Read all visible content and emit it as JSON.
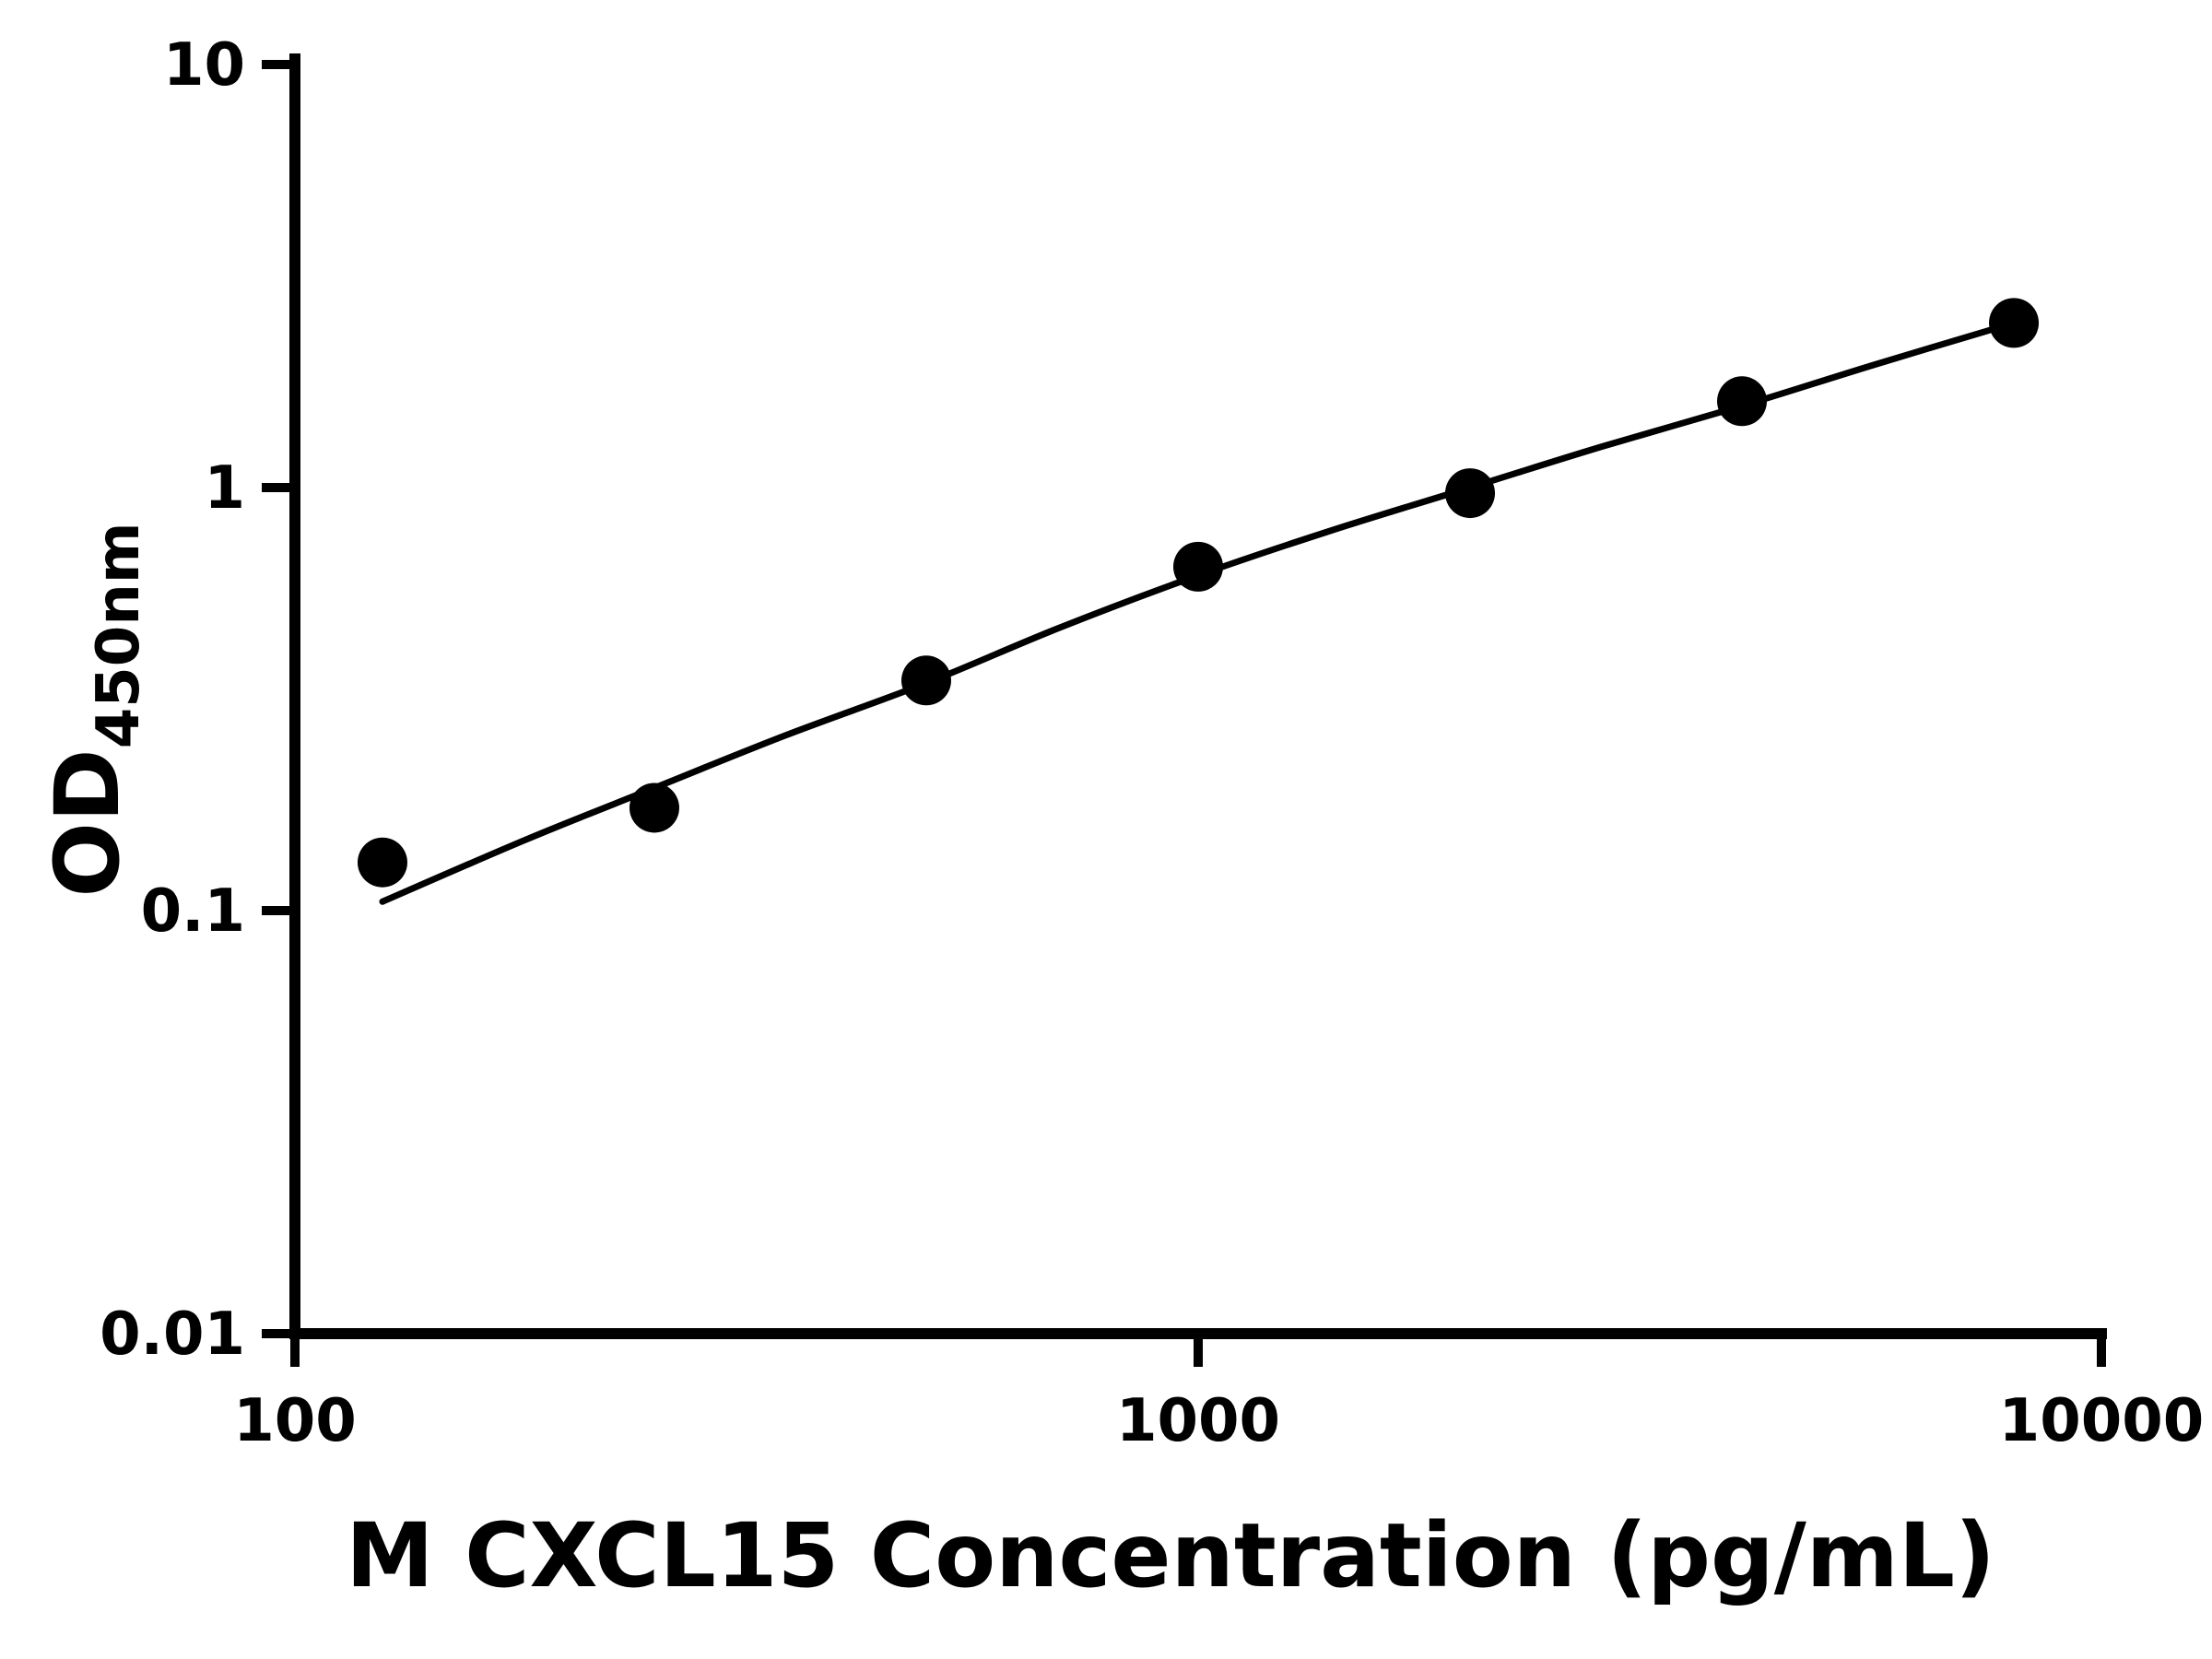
{
  "chart_data": {
    "type": "scatter",
    "title": "",
    "xlabel": "M CXCL15 Concentration (pg/mL)",
    "ylabel_main": "OD",
    "ylabel_sub": "450nm",
    "x_scale": "log",
    "y_scale": "log",
    "xlim": [
      100,
      10000
    ],
    "ylim": [
      0.01,
      10
    ],
    "grid": false,
    "legend": "none",
    "marker_color": "#000000",
    "line_color": "#000000",
    "background_color": "#ffffff",
    "x_ticks": [
      {
        "value": 100,
        "label": "100"
      },
      {
        "value": 1000,
        "label": "1000"
      },
      {
        "value": 10000,
        "label": "10000"
      }
    ],
    "y_ticks": [
      {
        "value": 10,
        "label": "10"
      },
      {
        "value": 1,
        "label": "1"
      },
      {
        "value": 0.1,
        "label": "0.1"
      },
      {
        "value": 0.01,
        "label": "0.01"
      }
    ],
    "series": [
      {
        "name": "standard-points",
        "type": "scatter",
        "points": [
          {
            "x": 125,
            "y": 0.13
          },
          {
            "x": 250,
            "y": 0.175
          },
          {
            "x": 500,
            "y": 0.35
          },
          {
            "x": 1000,
            "y": 0.65
          },
          {
            "x": 2000,
            "y": 0.97
          },
          {
            "x": 4000,
            "y": 1.6
          },
          {
            "x": 8000,
            "y": 2.45
          }
        ]
      },
      {
        "name": "fit-curve",
        "type": "line",
        "points": [
          {
            "x": 125,
            "y": 0.105
          },
          {
            "x": 180,
            "y": 0.147
          },
          {
            "x": 250,
            "y": 0.195
          },
          {
            "x": 350,
            "y": 0.26
          },
          {
            "x": 500,
            "y": 0.345
          },
          {
            "x": 700,
            "y": 0.465
          },
          {
            "x": 1000,
            "y": 0.62
          },
          {
            "x": 1400,
            "y": 0.79
          },
          {
            "x": 2000,
            "y": 1.0
          },
          {
            "x": 2800,
            "y": 1.25
          },
          {
            "x": 4000,
            "y": 1.56
          },
          {
            "x": 5600,
            "y": 1.95
          },
          {
            "x": 8000,
            "y": 2.45
          }
        ]
      }
    ]
  }
}
